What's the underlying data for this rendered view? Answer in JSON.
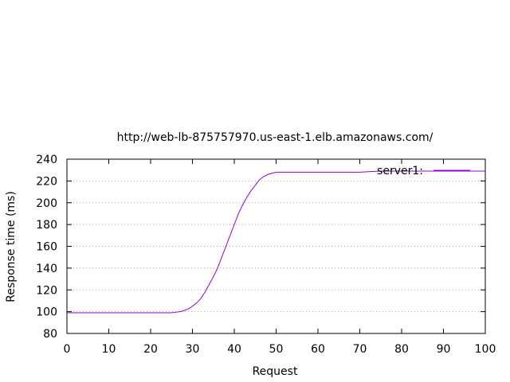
{
  "chart_data": {
    "type": "line",
    "title": "http://web-lb-875757970.us-east-1.elb.amazonaws.com/",
    "xlabel": "Request",
    "ylabel": "Response time (ms)",
    "xlim": [
      0,
      100
    ],
    "ylim": [
      80,
      240
    ],
    "xticks": [
      0,
      10,
      20,
      30,
      40,
      50,
      60,
      70,
      80,
      90,
      100
    ],
    "yticks": [
      80,
      100,
      120,
      140,
      160,
      180,
      200,
      220,
      240
    ],
    "grid": "horizontal dotted",
    "legend_position": "top-right",
    "series": [
      {
        "name": "server1:",
        "color": "#9400d3",
        "x": [
          0,
          5,
          10,
          15,
          20,
          23,
          25,
          26,
          27,
          28,
          29,
          30,
          31,
          32,
          33,
          34,
          35,
          36,
          37,
          38,
          39,
          40,
          41,
          42,
          43,
          44,
          45,
          46,
          47,
          48,
          49,
          50,
          55,
          60,
          65,
          70,
          72,
          75,
          80,
          85,
          90,
          95,
          100
        ],
        "y": [
          99,
          99,
          99,
          99,
          99,
          99,
          99,
          99.5,
          100,
          101,
          102.5,
          105,
          108,
          112,
          118,
          125,
          132,
          140,
          150,
          160,
          170,
          180,
          190,
          198,
          205,
          211,
          216,
          221,
          224,
          226,
          227,
          228,
          228,
          228,
          228,
          228,
          228.5,
          229,
          229,
          229,
          229,
          229,
          229
        ]
      }
    ]
  }
}
